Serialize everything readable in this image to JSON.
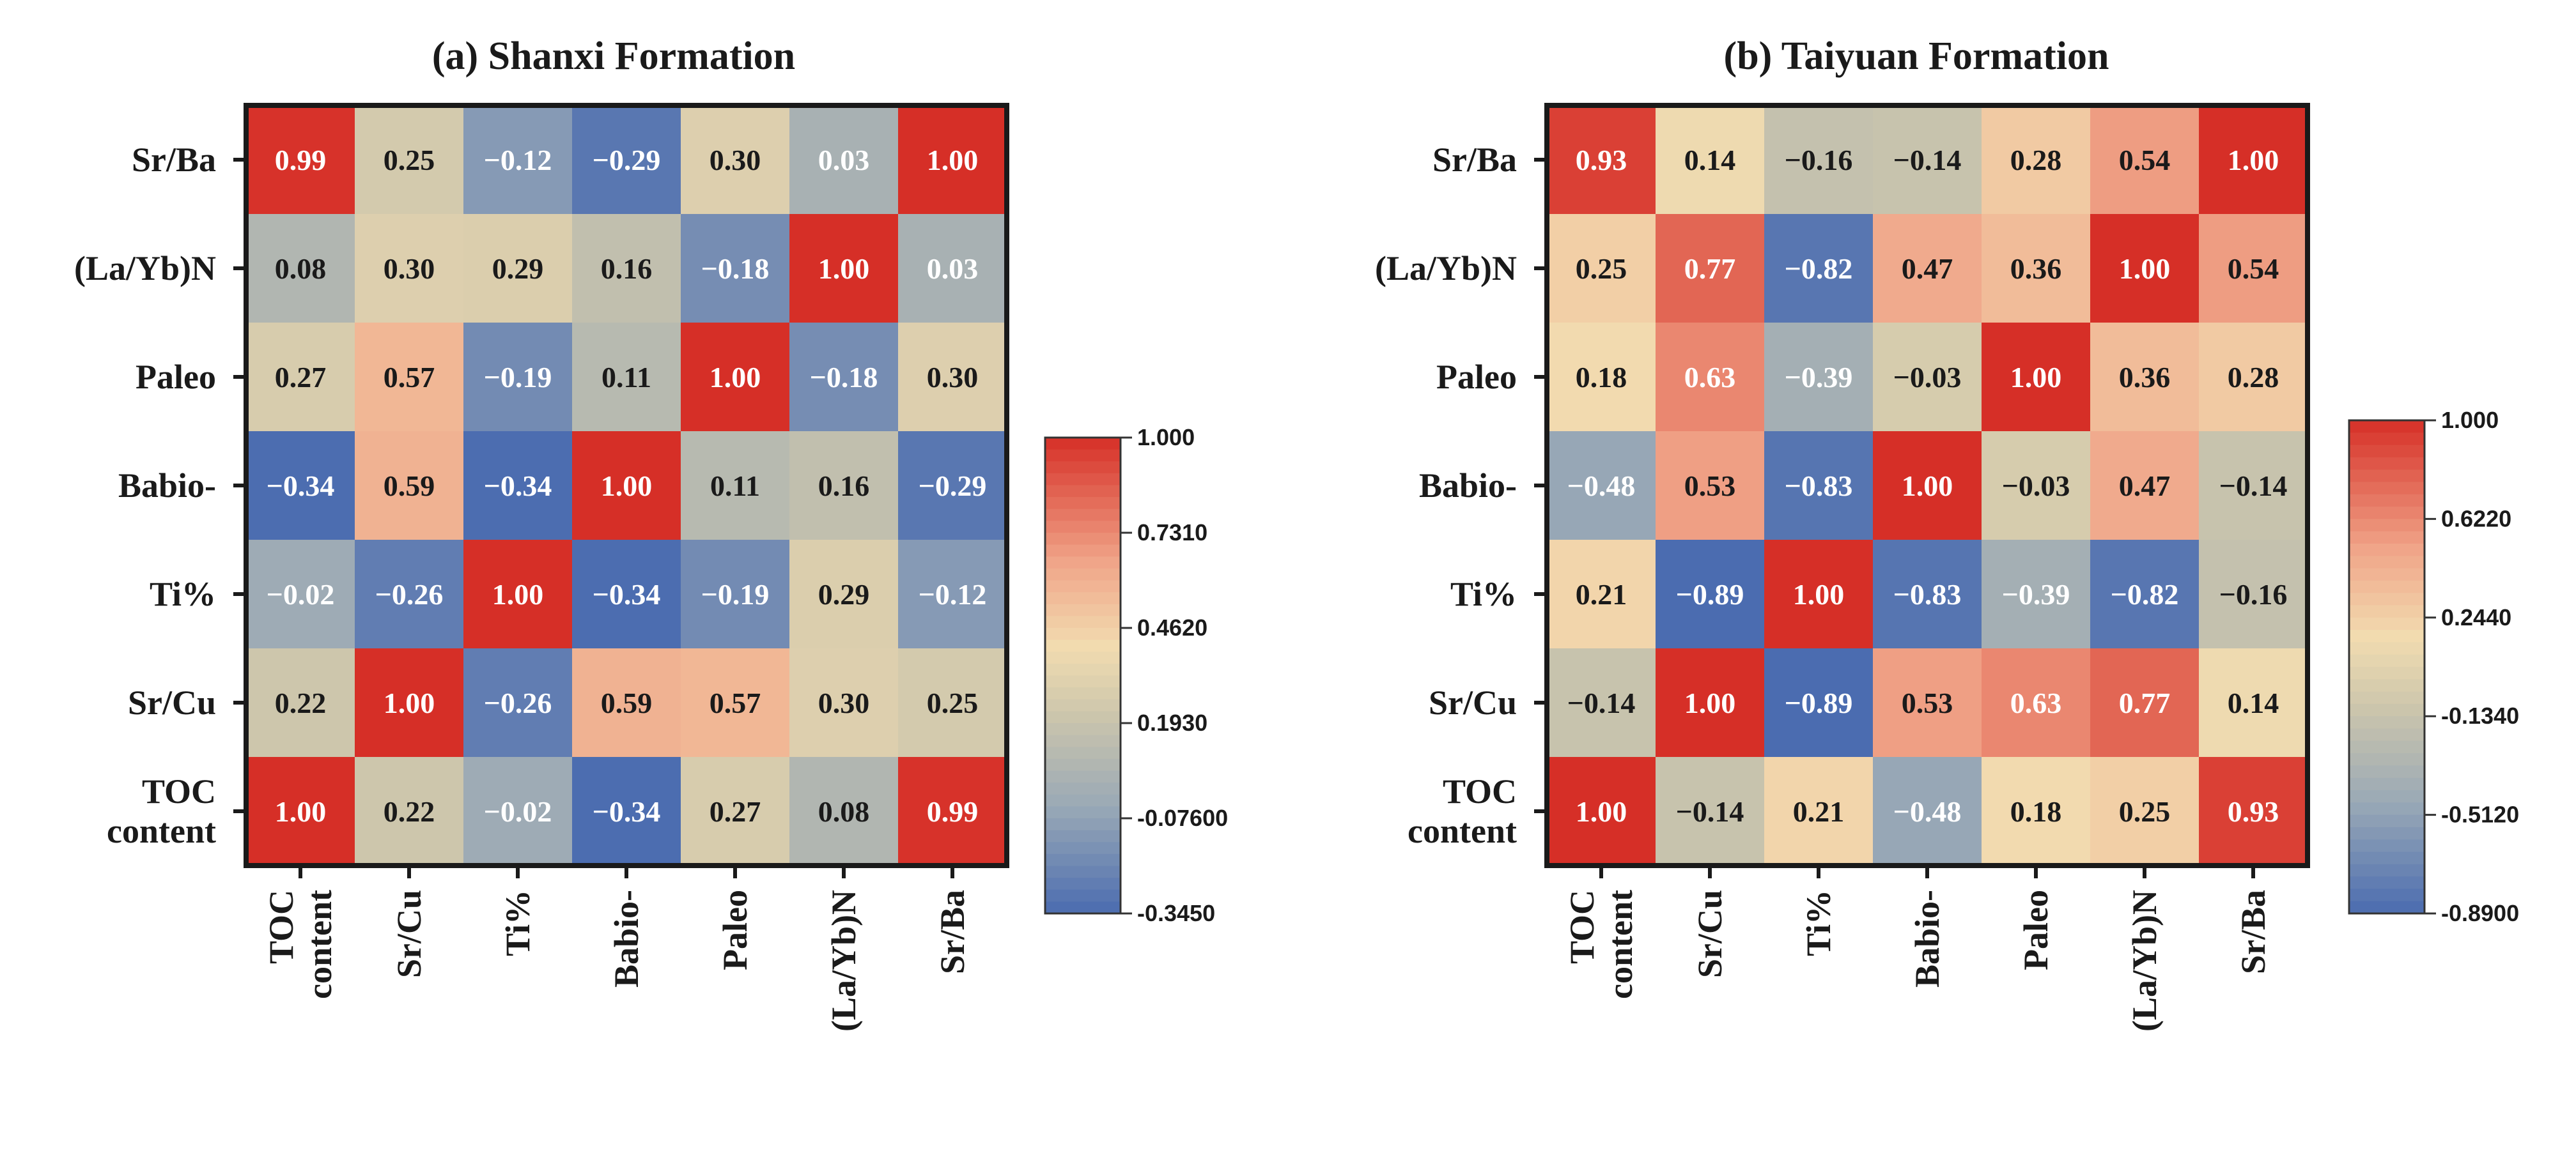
{
  "chart_data": [
    {
      "type": "heatmap",
      "title": "(a) Shanxi Formation",
      "row_labels": [
        [
          "Sr/Ba"
        ],
        [
          "(La/Yb)N"
        ],
        [
          "Paleo"
        ],
        [
          "Babio-"
        ],
        [
          "Ti%"
        ],
        [
          "Sr/Cu"
        ],
        [
          "TOC",
          "content"
        ]
      ],
      "col_labels": [
        [
          "TOC",
          "content"
        ],
        [
          "Sr/Cu"
        ],
        [
          "Ti%"
        ],
        [
          "Babio-"
        ],
        [
          "Paleo"
        ],
        [
          "(La/Yb)N"
        ],
        [
          "Sr/Ba"
        ]
      ],
      "values": [
        [
          "0.99",
          "0.25",
          "−0.12",
          "−0.29",
          "0.30",
          "0.03",
          "1.00"
        ],
        [
          "0.08",
          "0.30",
          "0.29",
          "0.16",
          "−0.18",
          "1.00",
          "0.03"
        ],
        [
          "0.27",
          "0.57",
          "−0.19",
          "0.11",
          "1.00",
          "−0.18",
          "0.30"
        ],
        [
          "−0.34",
          "0.59",
          "−0.34",
          "1.00",
          "0.11",
          "0.16",
          "−0.29"
        ],
        [
          "−0.02",
          "−0.26",
          "1.00",
          "−0.34",
          "−0.19",
          "0.29",
          "−0.12"
        ],
        [
          "0.22",
          "1.00",
          "−0.26",
          "0.59",
          "0.57",
          "0.30",
          "0.25"
        ],
        [
          "1.00",
          "0.22",
          "−0.02",
          "−0.34",
          "0.27",
          "0.08",
          "0.99"
        ]
      ],
      "colorbar": {
        "min": -0.345,
        "max": 1.0,
        "tick_values": [
          1.0,
          0.731,
          0.462,
          0.193,
          -0.076,
          -0.345
        ],
        "tick_labels": [
          "1.000",
          "0.7310",
          "0.4620",
          "0.1930",
          "-0.07600",
          "-0.3450"
        ]
      }
    },
    {
      "type": "heatmap",
      "title": "(b) Taiyuan Formation",
      "row_labels": [
        [
          "Sr/Ba"
        ],
        [
          "(La/Yb)N"
        ],
        [
          "Paleo"
        ],
        [
          "Babio-"
        ],
        [
          "Ti%"
        ],
        [
          "Sr/Cu"
        ],
        [
          "TOC",
          "content"
        ]
      ],
      "col_labels": [
        [
          "TOC",
          "content"
        ],
        [
          "Sr/Cu"
        ],
        [
          "Ti%"
        ],
        [
          "Babio-"
        ],
        [
          "Paleo"
        ],
        [
          "(La/Yb)N"
        ],
        [
          "Sr/Ba"
        ]
      ],
      "values": [
        [
          "0.93",
          "0.14",
          "−0.16",
          "−0.14",
          "0.28",
          "0.54",
          "1.00"
        ],
        [
          "0.25",
          "0.77",
          "−0.82",
          "0.47",
          "0.36",
          "1.00",
          "0.54"
        ],
        [
          "0.18",
          "0.63",
          "−0.39",
          "−0.03",
          "1.00",
          "0.36",
          "0.28"
        ],
        [
          "−0.48",
          "0.53",
          "−0.83",
          "1.00",
          "−0.03",
          "0.47",
          "−0.14"
        ],
        [
          "0.21",
          "−0.89",
          "1.00",
          "−0.83",
          "−0.39",
          "−0.82",
          "−0.16"
        ],
        [
          "−0.14",
          "1.00",
          "−0.89",
          "0.53",
          "0.63",
          "0.77",
          "0.14"
        ],
        [
          "1.00",
          "−0.14",
          "0.21",
          "−0.48",
          "0.18",
          "0.25",
          "0.93"
        ]
      ],
      "colorbar": {
        "min": -0.89,
        "max": 1.0,
        "tick_values": [
          1.0,
          0.622,
          0.244,
          -0.134,
          -0.512,
          -0.89
        ],
        "tick_labels": [
          "1.000",
          "0.6220",
          "0.2440",
          "-0.1340",
          "-0.5120",
          "-0.8900"
        ]
      }
    }
  ],
  "colors": {
    "colormap_low": "#4b6cb0",
    "colormap_mid_low": "#98a8b6",
    "colormap_mid": "#cdc6ac",
    "colormap_mid_high": "#f2dcb0",
    "colormap_high_mid": "#f0a488",
    "colormap_high": "#d62f27",
    "frame": "#1a1a1a",
    "text_light": "#ffffff",
    "text_dark": "#1a1a1a"
  }
}
